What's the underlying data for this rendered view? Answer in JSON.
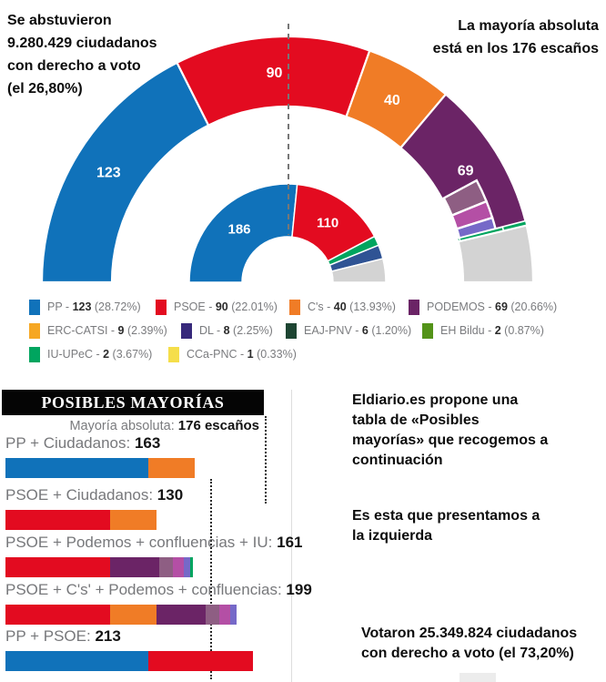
{
  "texts": {
    "abstention": "Se abstuvieron\n9.280.429 ciudadanos\ncon derecho a voto\n(el 26,80%)",
    "majority_note_top": "La mayoría absoluta\nestá en los 176 escaños",
    "eldiario_note": "Eldiario.es propone una\ntabla de «Posibles\nmayorías» que recogemos a\ncontinuación",
    "left_note": "Es esta que presentamos a\nla izquierda",
    "turnout": "Votaron 25.349.824 ciudadanos\ncon derecho a voto (el 73,20%)"
  },
  "panel": {
    "title": "POSIBLES MAYORÍAS",
    "majority_label": "Mayoría absoluta:",
    "majority_value": "176 escaños"
  },
  "colors": {
    "pp": "#1072BA",
    "psoe": "#E30B20",
    "cs": "#F07C26",
    "podemos": "#6B2466",
    "encomu": "#8E5E83",
    "compromis": "#B44FA5",
    "enmarea": "#7669C8",
    "iu": "#00A55F",
    "erc": "#F6A723",
    "dl": "#37297B",
    "pnv": "#1D4532",
    "bildu": "#539318",
    "cca": "#F5DE4A",
    "ciu": "#2F5394",
    "others": "#D3D3D3"
  },
  "legend": [
    {
      "party": "PP",
      "seats": "123",
      "pct": "(28.72%)",
      "color": "pp"
    },
    {
      "party": "PSOE",
      "seats": "90",
      "pct": "(22.01%)",
      "color": "psoe"
    },
    {
      "party": "C's",
      "seats": "40",
      "pct": "(13.93%)",
      "color": "cs"
    },
    {
      "party": "PODEMOS",
      "seats": "69",
      "pct": "(20.66%)",
      "color": "podemos"
    },
    {
      "party": "ERC-CATSI",
      "seats": "9",
      "pct": "(2.39%)",
      "color": "erc"
    },
    {
      "party": "DL",
      "seats": "8",
      "pct": "(2.25%)",
      "color": "dl"
    },
    {
      "party": "EAJ-PNV",
      "seats": "6",
      "pct": "(1.20%)",
      "color": "pnv"
    },
    {
      "party": "EH Bildu",
      "seats": "2",
      "pct": "(0.87%)",
      "color": "bildu"
    },
    {
      "party": "IU-UPeC",
      "seats": "2",
      "pct": "(3.67%)",
      "color": "iu"
    },
    {
      "party": "CCa-PNC",
      "seats": "1",
      "pct": "(0.33%)",
      "color": "cca"
    }
  ],
  "chart_data": [
    {
      "type": "donut",
      "name": "hemiciclo-2015-anillo-exterior",
      "total": 350,
      "majority": 176,
      "segments": [
        {
          "label": "PP",
          "seats": 123,
          "color": "pp",
          "value_label": "123"
        },
        {
          "label": "PSOE",
          "seats": 90,
          "color": "psoe",
          "value_label": "90"
        },
        {
          "label": "C's",
          "seats": 40,
          "color": "cs",
          "value_label": "40"
        },
        {
          "label": "PODEMOS",
          "seats": 69,
          "color": "podemos",
          "value_label": "69",
          "insets": [
            {
              "label": "confluencia-1",
              "seats": 12,
              "color": "encomu"
            },
            {
              "label": "confluencia-2",
              "seats": 9,
              "color": "compromis"
            },
            {
              "label": "confluencia-3",
              "seats": 6,
              "color": "enmarea"
            }
          ]
        },
        {
          "label": "IU-UPeC",
          "seats": 2,
          "color": "iu",
          "extend_inset": true
        },
        {
          "label": "Otros",
          "seats": 26,
          "color": "others"
        }
      ]
    },
    {
      "type": "donut",
      "name": "hemiciclo-anillo-interior-2011",
      "total": 350,
      "segments": [
        {
          "label": "PP",
          "seats": 186,
          "color": "pp",
          "value_label": "186"
        },
        {
          "label": "PSOE",
          "seats": 110,
          "color": "psoe",
          "value_label": "110"
        },
        {
          "label": "IU",
          "seats": 11,
          "color": "iu"
        },
        {
          "label": "CiU",
          "seats": 16,
          "color": "ciu"
        },
        {
          "label": "Otros",
          "seats": 27,
          "color": "others"
        }
      ]
    },
    {
      "type": "bar",
      "name": "posibles-mayorias",
      "majority": 176,
      "rows": [
        {
          "label": "PP + Ciudadanos:",
          "total": "163",
          "segments": [
            {
              "color": "pp",
              "seats": 123
            },
            {
              "color": "cs",
              "seats": 40
            }
          ]
        },
        {
          "label": "PSOE + Ciudadanos:",
          "total": "130",
          "segments": [
            {
              "color": "psoe",
              "seats": 90
            },
            {
              "color": "cs",
              "seats": 40
            }
          ]
        },
        {
          "label": "PSOE + Podemos + confluencias + IU:",
          "total": "161",
          "segments": [
            {
              "color": "psoe",
              "seats": 90
            },
            {
              "color": "podemos",
              "seats": 42
            },
            {
              "color": "encomu",
              "seats": 12
            },
            {
              "color": "compromis",
              "seats": 9
            },
            {
              "color": "enmarea",
              "seats": 6
            },
            {
              "color": "iu",
              "seats": 2
            }
          ]
        },
        {
          "label": "PSOE + C's' + Podemos + confluencias:",
          "total": "199",
          "segments": [
            {
              "color": "psoe",
              "seats": 90
            },
            {
              "color": "cs",
              "seats": 40
            },
            {
              "color": "podemos",
              "seats": 42
            },
            {
              "color": "encomu",
              "seats": 12
            },
            {
              "color": "compromis",
              "seats": 9
            },
            {
              "color": "enmarea",
              "seats": 6
            }
          ]
        },
        {
          "label": "PP + PSOE:",
          "total": "213",
          "segments": [
            {
              "color": "pp",
              "seats": 123
            },
            {
              "color": "psoe",
              "seats": 90
            }
          ]
        }
      ]
    }
  ]
}
